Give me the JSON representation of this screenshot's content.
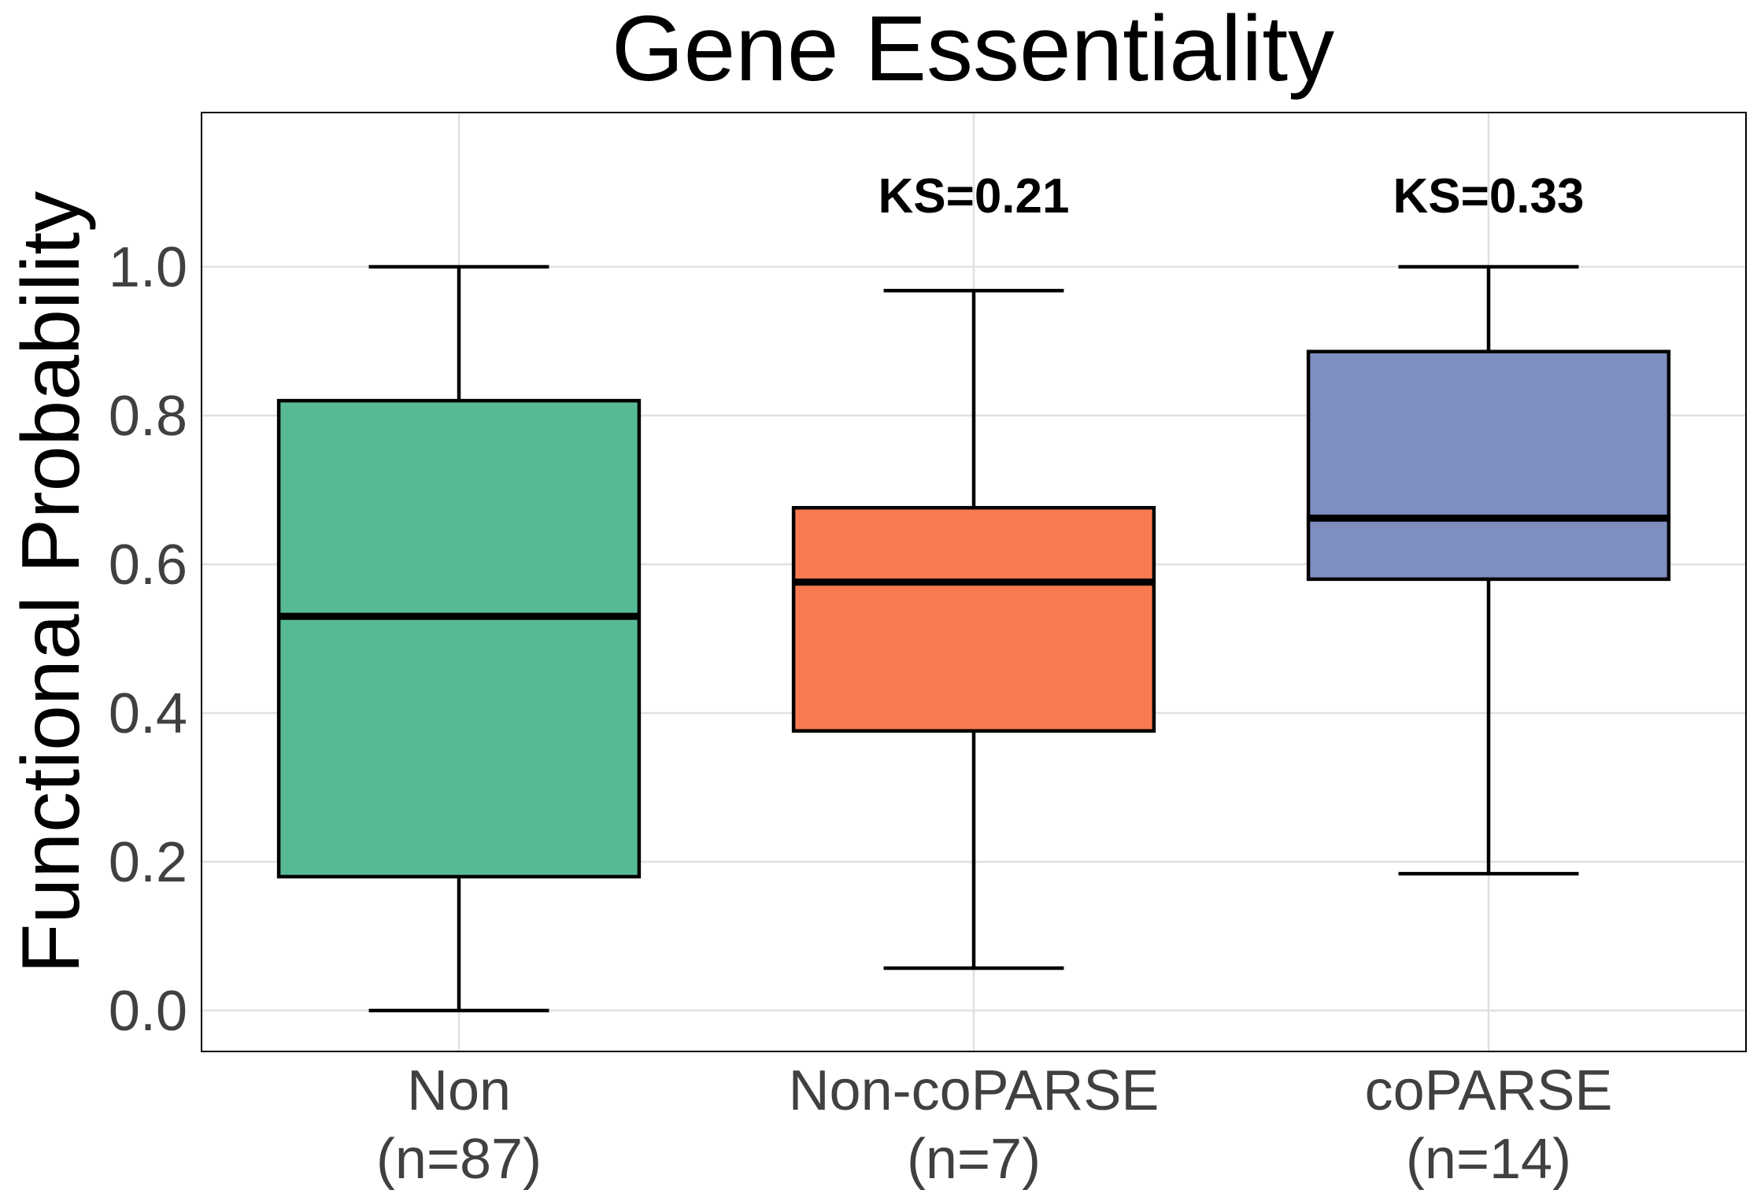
{
  "chart_data": {
    "type": "box",
    "title": "Gene Essentiality",
    "ylabel": "Functional Probability",
    "xlabel": "",
    "ylim": [
      -0.055,
      1.21
    ],
    "yticks": [
      0.0,
      0.2,
      0.4,
      0.6,
      0.8,
      1.0
    ],
    "ytick_labels": [
      "0.0",
      "0.2",
      "0.4",
      "0.6",
      "0.8",
      "1.0"
    ],
    "grid": true,
    "categories": [
      {
        "label": "Non",
        "sublabel": "(n=87)"
      },
      {
        "label": "Non-coPARSE",
        "sublabel": "(n=7)"
      },
      {
        "label": "coPARSE",
        "sublabel": "(n=14)"
      }
    ],
    "boxes": [
      {
        "min": 0.0,
        "q1": 0.18,
        "median": 0.53,
        "q3": 0.82,
        "max": 1.0,
        "color": "#58BA94",
        "annotation": ""
      },
      {
        "min": 0.057,
        "q1": 0.376,
        "median": 0.576,
        "q3": 0.676,
        "max": 0.968,
        "color": "#F87B52",
        "annotation": "KS=0.21"
      },
      {
        "min": 0.184,
        "q1": 0.58,
        "median": 0.662,
        "q3": 0.886,
        "max": 1.0,
        "color": "#7E8EBF",
        "annotation": "KS=0.33"
      }
    ]
  }
}
